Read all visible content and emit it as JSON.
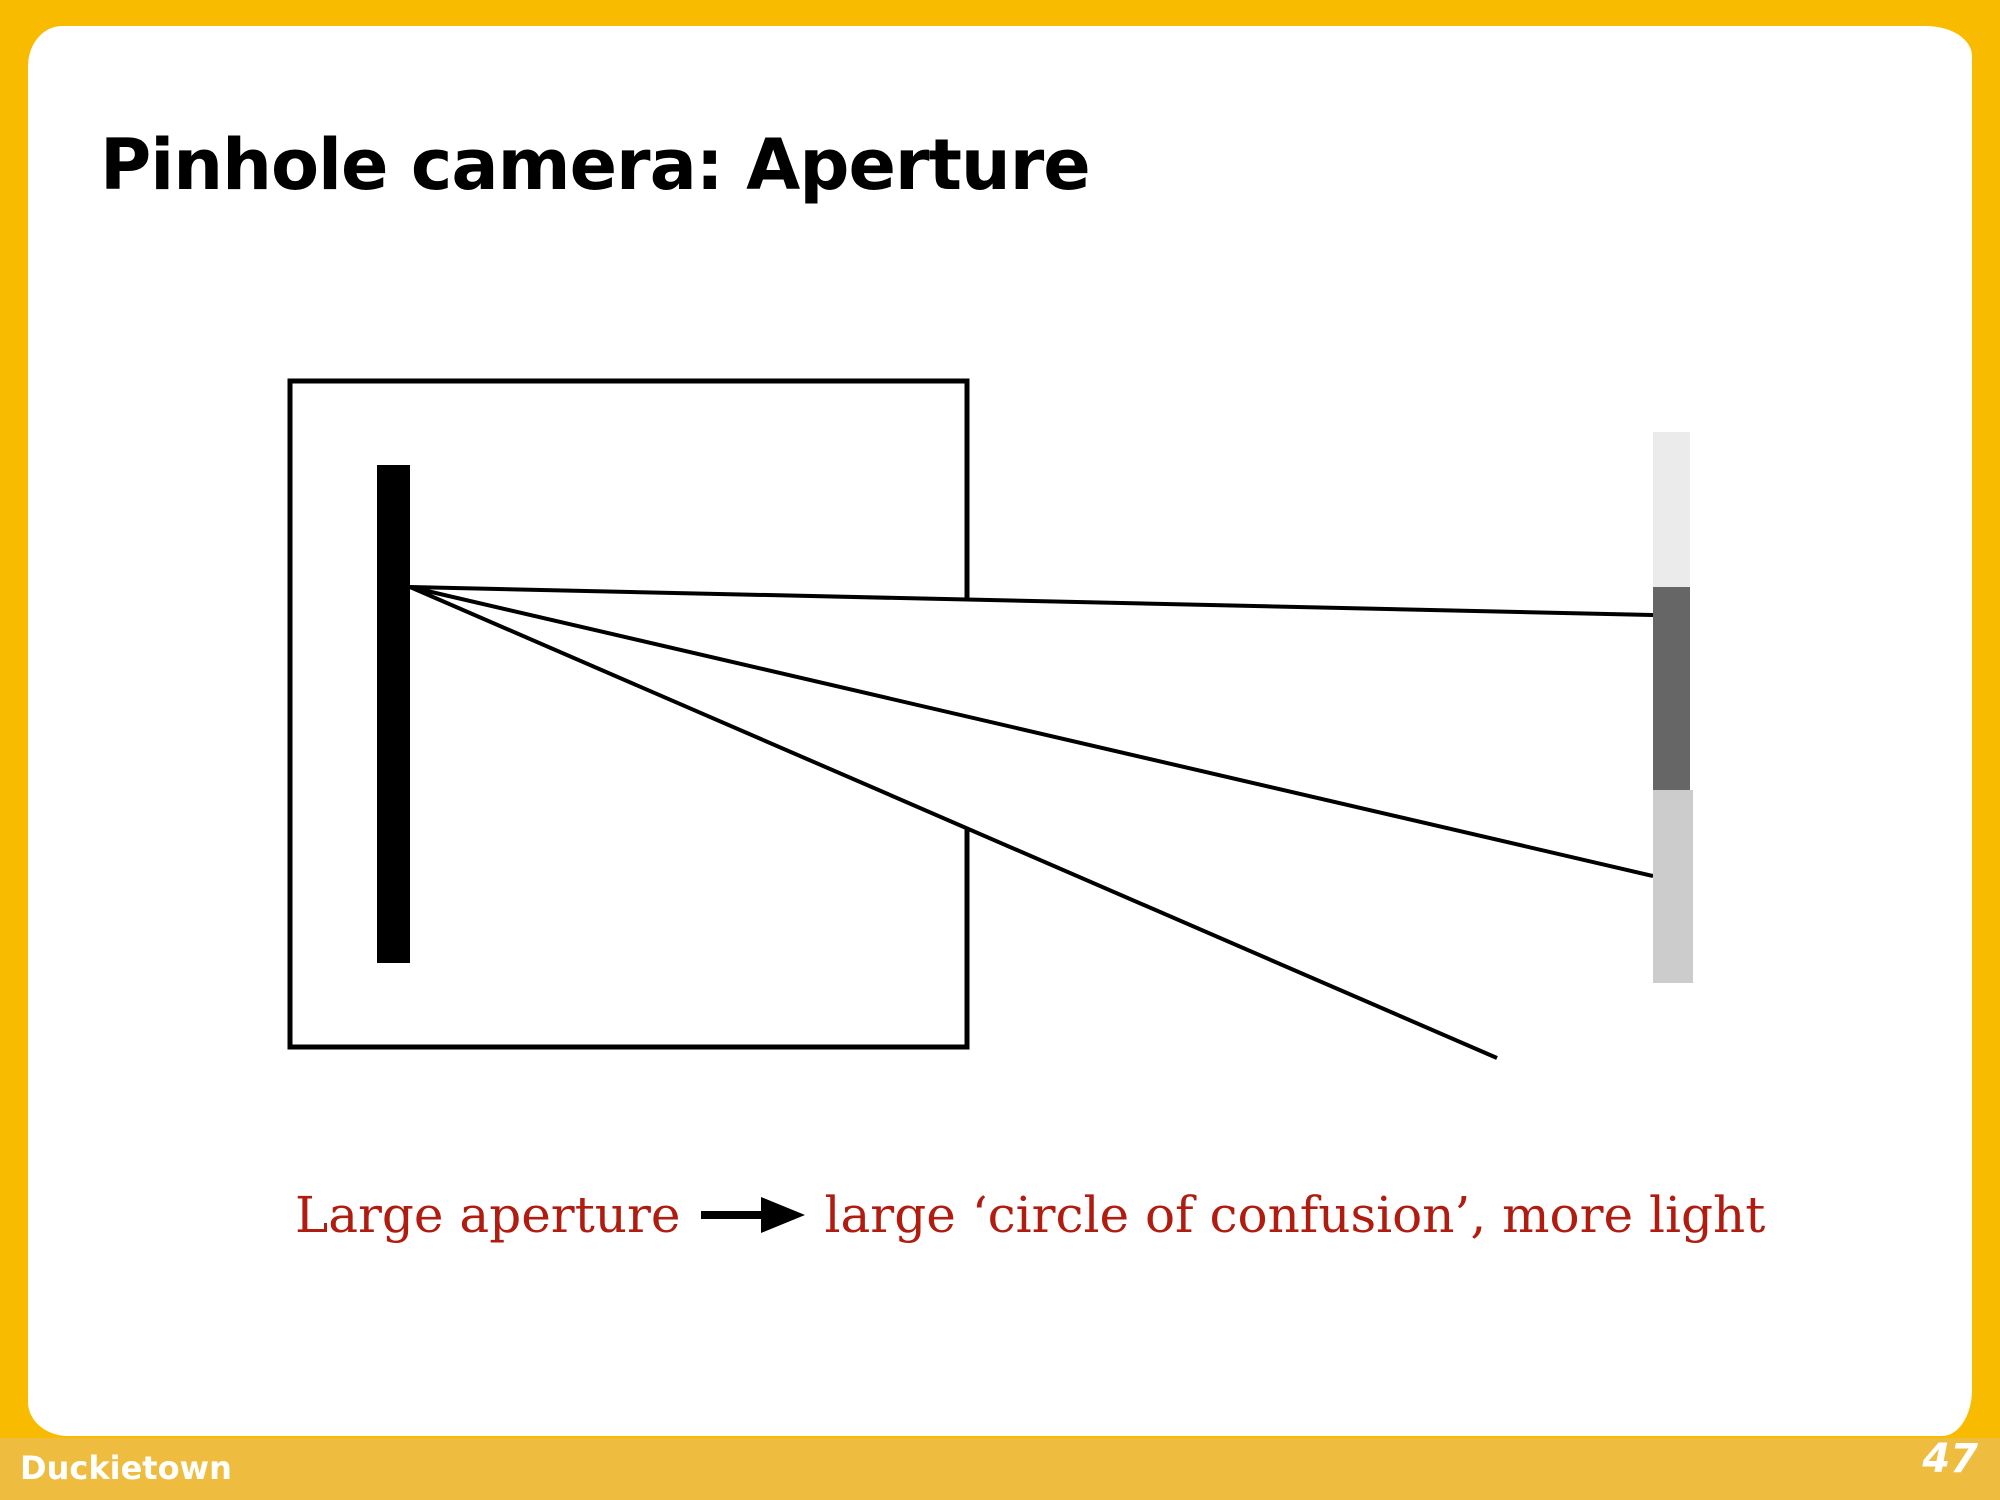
{
  "slide": {
    "title": "Pinhole camera: Aperture",
    "caption_left": "Large aperture",
    "caption_right": "large ‘circle of confusion’, more light",
    "caption_arrow_icon": "right-arrow-icon",
    "footer_brand": "Duckietown",
    "page_number": "47"
  },
  "colors": {
    "background_frame": "#f8bb00",
    "footer_bar": "#eebd3f",
    "caption_text": "#b01d10",
    "image_band_top": "#ebebeb",
    "image_band_middle": "#666666",
    "image_band_bottom": "#cccccc"
  }
}
